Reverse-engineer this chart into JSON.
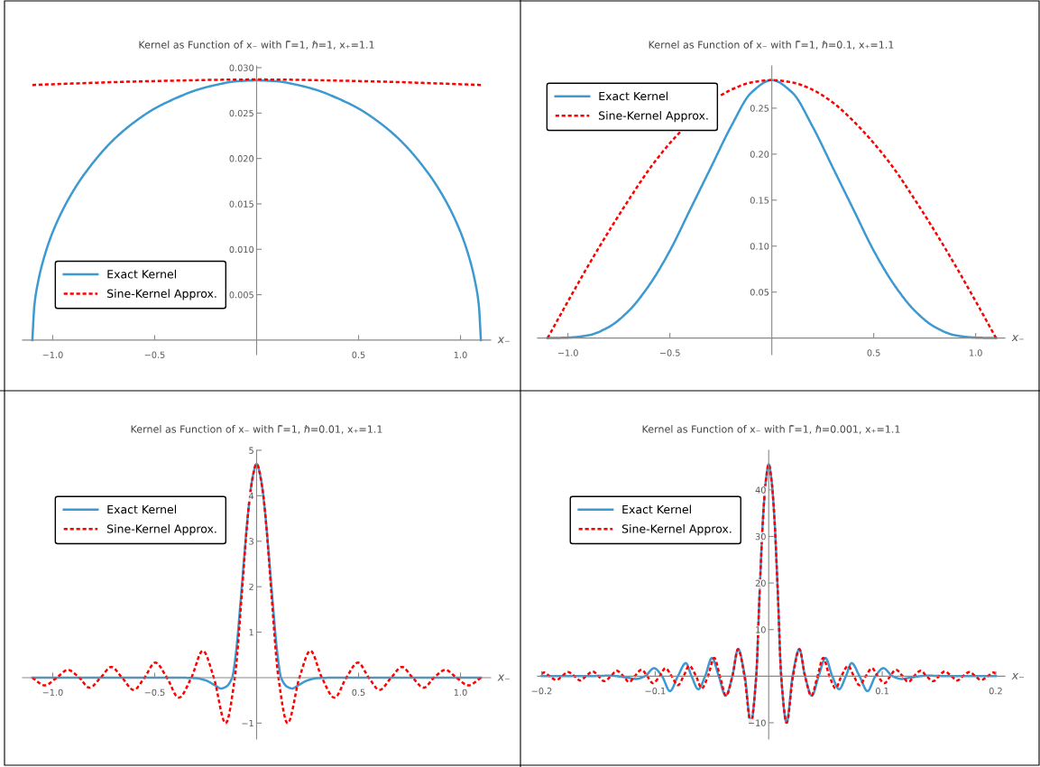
{
  "chart_data": [
    {
      "type": "line",
      "title": "Kernel as Function of x₋ with Γ̄=1, ℏ=1, x₊=1.1",
      "xlabel": "x₋",
      "xlim": [
        -1.148,
        1.148
      ],
      "ylim": [
        -0.0016,
        0.0302
      ],
      "xticks": [
        {
          "value": -1.0,
          "label": "−1.0"
        },
        {
          "value": -0.5,
          "label": "−0.5"
        },
        0.5,
        {
          "value": 1.0,
          "label": "1.0"
        }
      ],
      "yticks": [
        0.005,
        {
          "value": 0.01,
          "label": "0.010"
        },
        0.015,
        {
          "value": 0.02,
          "label": "0.020"
        },
        0.025,
        {
          "value": 0.03,
          "label": "0.030"
        }
      ],
      "legend": "bottom left",
      "series": [
        {
          "name": "Exact Kernel",
          "color": "#3d9ad1",
          "line_style": "solid",
          "x": [
            -1.1,
            -1.09,
            -1.07,
            -1.05,
            -1.0,
            -0.9,
            -0.8,
            -0.7,
            -0.6,
            -0.5,
            -0.4,
            -0.3,
            -0.2,
            -0.1,
            0,
            0.1,
            0.2,
            0.3,
            0.4,
            0.5,
            0.6,
            0.7,
            0.8,
            0.9,
            1.0,
            1.05,
            1.07,
            1.09,
            1.1
          ],
          "values": [
            0,
            0.0038,
            0.0066,
            0.0085,
            0.0119,
            0.0164,
            0.0196,
            0.0221,
            0.024,
            0.0255,
            0.0266,
            0.0275,
            0.0281,
            0.0285,
            0.0286,
            0.0285,
            0.0281,
            0.0275,
            0.0266,
            0.0255,
            0.024,
            0.0221,
            0.0196,
            0.0164,
            0.0119,
            0.0085,
            0.0066,
            0.0038,
            0
          ]
        },
        {
          "name": "Sine-Kernel Approx.",
          "color": "#ff0000",
          "line_style": "dashed",
          "x": [
            -1.1,
            -0.55,
            0,
            0.55,
            1.1
          ],
          "values": [
            0.0281,
            0.0285,
            0.0287,
            0.0285,
            0.0281
          ]
        }
      ]
    },
    {
      "type": "line",
      "title": "Kernel as Function of x₋ with Γ̄=1, ℏ=0.1, x₊=1.1",
      "xlabel": "x₋",
      "xlim": [
        -1.149,
        1.143
      ],
      "ylim": [
        -0.018,
        0.296
      ],
      "xticks": [
        {
          "value": -1.0,
          "label": "−1.0"
        },
        {
          "value": -0.5,
          "label": "−0.5"
        },
        0.5,
        {
          "value": 1.0,
          "label": "1.0"
        }
      ],
      "yticks": [
        0.05,
        {
          "value": 0.1,
          "label": "0.10"
        },
        0.15,
        {
          "value": 0.2,
          "label": "0.20"
        },
        0.25
      ],
      "legend": "top left",
      "series": [
        {
          "name": "Exact Kernel",
          "color": "#3d9ad1",
          "line_style": "solid",
          "x": [
            -1.1,
            -1.0,
            -0.9,
            -0.8,
            -0.7,
            -0.6,
            -0.5,
            -0.4,
            -0.3,
            -0.2,
            -0.1,
            0,
            0.1,
            0.2,
            0.3,
            0.4,
            0.5,
            0.6,
            0.7,
            0.8,
            0.9,
            1.0,
            1.1
          ],
          "values": [
            0,
            0.0005,
            0.003,
            0.012,
            0.03,
            0.058,
            0.095,
            0.14,
            0.185,
            0.23,
            0.267,
            0.2805,
            0.267,
            0.23,
            0.185,
            0.14,
            0.095,
            0.058,
            0.03,
            0.012,
            0.003,
            0.0005,
            0
          ]
        },
        {
          "name": "Sine-Kernel Approx.",
          "color": "#ff0000",
          "line_style": "dashed",
          "x": [
            -1.1,
            -1.0,
            -0.9,
            -0.8,
            -0.7,
            -0.6,
            -0.5,
            -0.45,
            -0.4,
            -0.3,
            -0.25,
            -0.2,
            -0.1,
            0,
            0.1,
            0.2,
            0.3,
            0.4,
            0.5,
            0.6,
            0.7,
            0.8,
            0.9,
            1.0,
            1.1
          ],
          "values": [
            0,
            0.04,
            0.079,
            0.116,
            0.151,
            0.184,
            0.212,
            0.224,
            null,
            null,
            0.264,
            0.27,
            0.278,
            0.2805,
            0.278,
            0.27,
            0.256,
            0.236,
            0.212,
            0.184,
            0.151,
            0.116,
            0.079,
            0.04,
            0
          ]
        }
      ]
    },
    {
      "type": "line",
      "title": "Kernel as Function of x₋ with Γ̄=1, ℏ=0.01, x₊=1.1",
      "xlabel": "x₋",
      "xlim": [
        -1.148,
        1.148
      ],
      "ylim": [
        -1.35,
        5.0
      ],
      "xticks": [
        {
          "value": -1.0,
          "label": "−1.0"
        },
        {
          "value": -0.5,
          "label": "−0.5"
        },
        0.5,
        {
          "value": 1.0,
          "label": "1.0"
        }
      ],
      "yticks": [
        {
          "value": -1,
          "label": "−1"
        },
        1,
        2,
        3,
        4,
        5
      ],
      "legend": "top left",
      "series": [
        {
          "name": "Exact Kernel",
          "color": "#3d9ad1",
          "line_style": "solid",
          "x": [
            -1.1,
            -0.4,
            -0.3,
            -0.25,
            -0.2,
            -0.175,
            -0.15,
            -0.12,
            -0.1,
            -0.08,
            -0.06,
            -0.04,
            -0.02,
            0,
            0.02,
            0.04,
            0.06,
            0.08,
            0.1,
            0.12,
            0.15,
            0.175,
            0.2,
            0.25,
            0.3,
            0.4,
            1.1
          ],
          "values": [
            0,
            0,
            -0.01,
            -0.06,
            -0.18,
            -0.24,
            -0.2,
            0,
            0.6,
            1.6,
            2.7,
            3.7,
            4.4,
            4.7,
            4.4,
            3.7,
            2.7,
            1.6,
            0.6,
            0,
            -0.2,
            -0.24,
            -0.18,
            -0.06,
            -0.01,
            0,
            0
          ]
        },
        {
          "name": "Sine-Kernel Approx.",
          "color": "#ff0000",
          "line_style": "dashed",
          "x": [
            -1.1,
            -1.04,
            -0.98,
            -0.926,
            -0.87,
            -0.82,
            -0.765,
            -0.713,
            -0.66,
            -0.603,
            -0.55,
            -0.497,
            -0.44,
            -0.382,
            -0.32,
            -0.264,
            -0.21,
            -0.152,
            -0.107,
            -0.07,
            -0.05,
            -0.03,
            0,
            0.03,
            0.05,
            0.07,
            0.107,
            0.152,
            0.21,
            0.264,
            0.32,
            0.382,
            0.44,
            0.497,
            0.55,
            0.603,
            0.66,
            0.713,
            0.765,
            0.82,
            0.87,
            0.926,
            0.98,
            1.04,
            1.1
          ],
          "values": [
            0,
            -0.17,
            0,
            0.17,
            0,
            -0.22,
            0,
            0.235,
            0,
            -0.27,
            0,
            0.33,
            0,
            -0.44,
            0,
            0.59,
            0,
            -1.0,
            0,
            2.0,
            3.2,
            4.1,
            4.7,
            4.1,
            3.2,
            2.0,
            0,
            -1.0,
            0,
            0.59,
            0,
            -0.44,
            0,
            0.33,
            0,
            -0.27,
            0,
            0.235,
            0,
            -0.22,
            0,
            0.17,
            0,
            -0.17,
            0
          ]
        }
      ]
    },
    {
      "type": "line",
      "title": "Kernel as Function of x₋ with Γ̄=1, ℏ=0.001, x₊=1.1",
      "xlabel": "x₋",
      "xlim": [
        -0.2036,
        0.208
      ],
      "ylim": [
        -13.5,
        48.5
      ],
      "xticks": [
        {
          "value": -0.2,
          "label": "−0.2"
        },
        {
          "value": -0.1,
          "label": "−0.1"
        },
        0.1,
        0.2
      ],
      "yticks": [
        {
          "value": -10,
          "label": "−10"
        },
        10,
        20,
        30,
        40
      ],
      "legend": "top left",
      "series": [
        {
          "name": "Exact Kernel",
          "color": "#3d9ad1",
          "line_style": "solid",
          "x": [
            -0.2,
            -0.16,
            -0.14,
            -0.125,
            -0.117,
            -0.109,
            -0.101,
            -0.094,
            -0.087,
            -0.08,
            -0.073,
            -0.068,
            -0.062,
            -0.056,
            -0.05,
            -0.044,
            -0.038,
            -0.032,
            -0.027,
            -0.021,
            -0.0158,
            -0.011,
            -0.008,
            -0.005,
            -0.0025,
            0,
            0.0025,
            0.005,
            0.008,
            0.011,
            0.0158,
            0.021,
            0.027,
            0.032,
            0.038,
            0.044,
            0.05,
            0.056,
            0.062,
            0.068,
            0.073,
            0.08,
            0.087,
            0.094,
            0.101,
            0.109,
            0.117,
            0.125,
            0.14,
            0.16,
            0.2
          ],
          "values": [
            0,
            0,
            0.1,
            -0.3,
            -0.6,
            0,
            1.7,
            0,
            -3.2,
            0,
            2.8,
            0,
            -2.8,
            0,
            3.9,
            0,
            -4.2,
            0,
            5.8,
            0,
            -10,
            0,
            18,
            34,
            42,
            45.5,
            42,
            34,
            18,
            0,
            -10,
            0,
            5.8,
            0,
            -4.2,
            0,
            3.9,
            0,
            -2.8,
            0,
            2.8,
            0,
            -3.2,
            0,
            1.7,
            0,
            -0.6,
            -0.3,
            0.1,
            0,
            0
          ]
        },
        {
          "name": "Sine-Kernel Approx.",
          "color": "#ff0000",
          "line_style": "dashed",
          "x": [
            -0.2,
            -0.198,
            -0.193,
            -0.187,
            -0.182,
            -0.177,
            -0.171,
            -0.166,
            -0.161,
            -0.155,
            -0.15,
            -0.145,
            -0.139,
            -0.134,
            -0.128,
            -0.123,
            -0.118,
            -0.112,
            -0.107,
            -0.102,
            -0.096,
            -0.091,
            -0.0855,
            -0.08,
            -0.075,
            -0.07,
            -0.064,
            -0.059,
            -0.0535,
            -0.048,
            -0.043,
            -0.0375,
            -0.032,
            -0.027,
            -0.0214,
            -0.0158,
            -0.011,
            -0.008,
            -0.005,
            -0.0025,
            0,
            0.0025,
            0.005,
            0.008,
            0.011,
            0.0158,
            0.0214,
            0.027,
            0.032,
            0.0375,
            0.043,
            0.048,
            0.0535,
            0.059,
            0.064,
            0.07,
            0.075,
            0.08,
            0.0855,
            0.091,
            0.096,
            0.102,
            0.107,
            0.112,
            0.118,
            0.123,
            0.128,
            0.134,
            0.139,
            0.145,
            0.15,
            0.155,
            0.161,
            0.166,
            0.171,
            0.177,
            0.182,
            0.187,
            0.193,
            0.198,
            0.2
          ],
          "values": [
            0.5,
            0.78,
            0,
            -0.83,
            0,
            0.88,
            0,
            -0.93,
            0,
            1.0,
            0,
            -1.07,
            0,
            1.16,
            0,
            -1.26,
            0,
            1.38,
            0,
            -1.5,
            0,
            1.7,
            0,
            -1.94,
            0,
            2.2,
            0,
            -2.6,
            0,
            3.9,
            0,
            -4.2,
            0,
            5.8,
            0,
            -10,
            0,
            18,
            34,
            42,
            45.5,
            42,
            34,
            18,
            0,
            -10,
            0,
            5.8,
            0,
            -4.2,
            0,
            3.9,
            0,
            -2.6,
            0,
            2.2,
            0,
            -1.94,
            0,
            1.7,
            0,
            -1.5,
            0,
            1.38,
            0,
            -1.26,
            0,
            1.16,
            0,
            -1.07,
            0,
            1.0,
            0,
            -0.93,
            0,
            0.88,
            0,
            -0.83,
            0,
            0.78,
            0.5
          ]
        }
      ]
    }
  ]
}
